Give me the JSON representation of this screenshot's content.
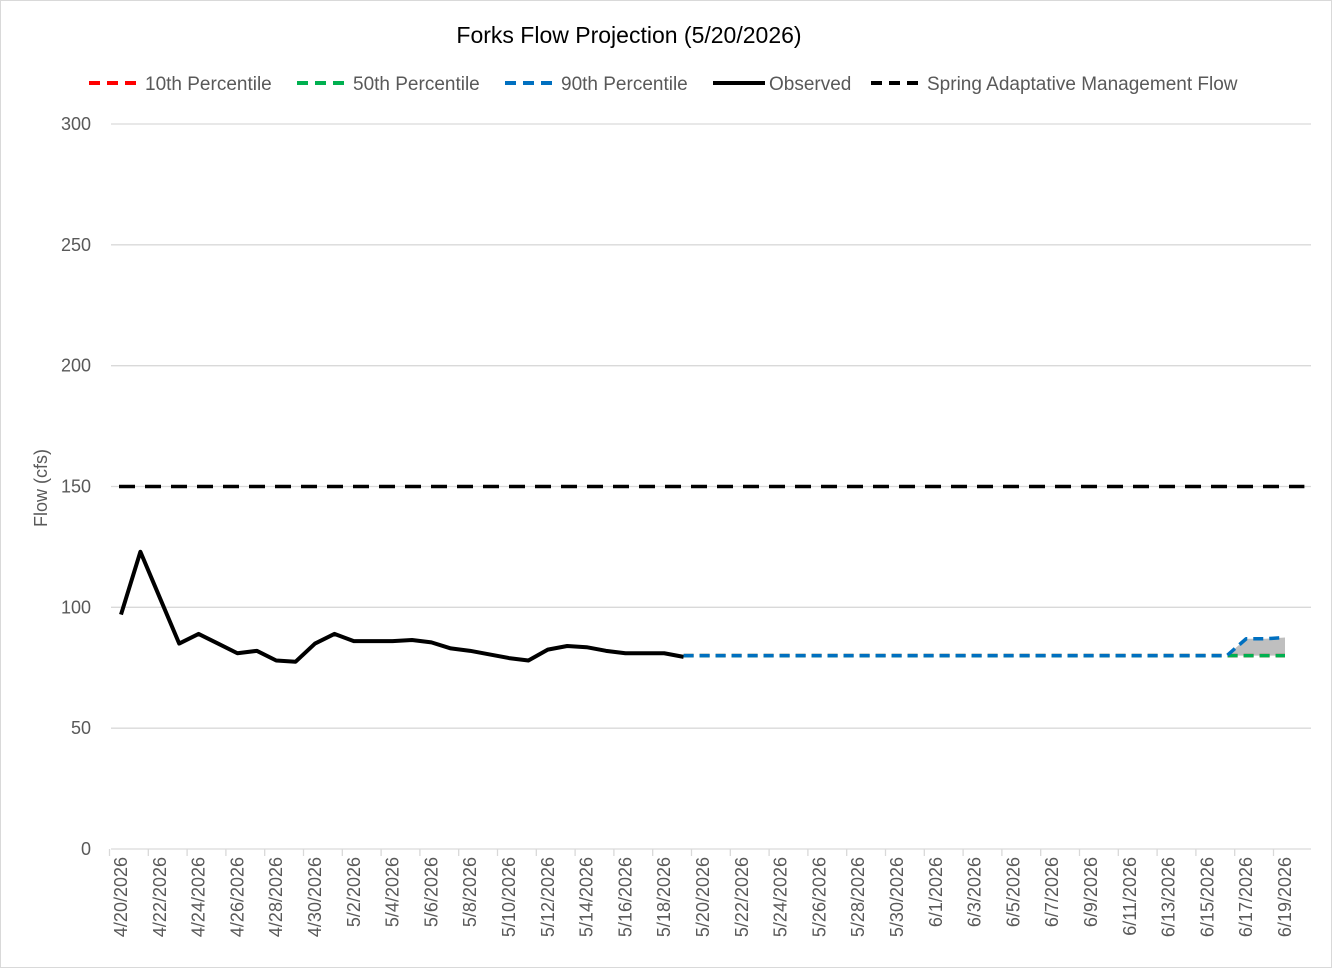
{
  "chart_data": {
    "type": "line",
    "title": "Forks Flow Projection (5/20/2026)",
    "xlabel": "",
    "ylabel": "Flow (cfs)",
    "ylim": [
      0,
      300
    ],
    "yticks": [
      0,
      50,
      100,
      150,
      200,
      250,
      300
    ],
    "grid": "horizontal",
    "legend_position": "top",
    "x_start_date": "4/20/2026",
    "x_tick_labels": [
      "4/20/2026",
      "4/22/2026",
      "4/24/2026",
      "4/26/2026",
      "4/28/2026",
      "4/30/2026",
      "5/2/2026",
      "5/4/2026",
      "5/6/2026",
      "5/8/2026",
      "5/10/2026",
      "5/12/2026",
      "5/14/2026",
      "5/16/2026",
      "5/18/2026",
      "5/20/2026",
      "5/22/2026",
      "5/24/2026",
      "5/26/2026",
      "5/28/2026",
      "5/30/2026",
      "6/1/2026",
      "6/3/2026",
      "6/5/2026",
      "6/7/2026",
      "6/9/2026",
      "6/11/2026",
      "6/13/2026",
      "6/15/2026",
      "6/17/2026",
      "6/19/2026"
    ],
    "shading": {
      "between": [
        "10th Percentile",
        "90th Percentile"
      ],
      "color": "#bfbfbf"
    },
    "series": [
      {
        "name": "10th Percentile",
        "color": "#ff0000",
        "style": "dashed",
        "x": [
          "5/19/2026",
          "5/20/2026",
          "5/21/2026",
          "5/22/2026",
          "5/23/2026",
          "5/24/2026",
          "5/25/2026",
          "5/26/2026",
          "5/27/2026",
          "5/28/2026",
          "5/29/2026",
          "5/30/2026",
          "5/31/2026",
          "6/1/2026",
          "6/2/2026",
          "6/3/2026",
          "6/4/2026",
          "6/5/2026",
          "6/6/2026",
          "6/7/2026",
          "6/8/2026",
          "6/9/2026",
          "6/10/2026",
          "6/11/2026",
          "6/12/2026",
          "6/13/2026",
          "6/14/2026",
          "6/15/2026",
          "6/16/2026",
          "6/17/2026",
          "6/18/2026",
          "6/19/2026"
        ],
        "y": [
          80,
          80,
          80,
          80,
          80,
          80,
          80,
          80,
          80,
          80,
          80,
          80,
          80,
          80,
          80,
          80,
          80,
          80,
          80,
          80,
          80,
          80,
          80,
          80,
          80,
          80,
          80,
          80,
          80,
          80,
          80,
          80
        ]
      },
      {
        "name": "50th Percentile",
        "color": "#00b050",
        "style": "dashed",
        "x": [
          "5/19/2026",
          "5/20/2026",
          "5/21/2026",
          "5/22/2026",
          "5/23/2026",
          "5/24/2026",
          "5/25/2026",
          "5/26/2026",
          "5/27/2026",
          "5/28/2026",
          "5/29/2026",
          "5/30/2026",
          "5/31/2026",
          "6/1/2026",
          "6/2/2026",
          "6/3/2026",
          "6/4/2026",
          "6/5/2026",
          "6/6/2026",
          "6/7/2026",
          "6/8/2026",
          "6/9/2026",
          "6/10/2026",
          "6/11/2026",
          "6/12/2026",
          "6/13/2026",
          "6/14/2026",
          "6/15/2026",
          "6/16/2026",
          "6/17/2026",
          "6/18/2026",
          "6/19/2026"
        ],
        "y": [
          80,
          80,
          80,
          80,
          80,
          80,
          80,
          80,
          80,
          80,
          80,
          80,
          80,
          80,
          80,
          80,
          80,
          80,
          80,
          80,
          80,
          80,
          80,
          80,
          80,
          80,
          80,
          80,
          80,
          80,
          80,
          80
        ]
      },
      {
        "name": "90th Percentile",
        "color": "#0070c0",
        "style": "dashed",
        "x": [
          "5/19/2026",
          "5/20/2026",
          "5/21/2026",
          "5/22/2026",
          "5/23/2026",
          "5/24/2026",
          "5/25/2026",
          "5/26/2026",
          "5/27/2026",
          "5/28/2026",
          "5/29/2026",
          "5/30/2026",
          "5/31/2026",
          "6/1/2026",
          "6/2/2026",
          "6/3/2026",
          "6/4/2026",
          "6/5/2026",
          "6/6/2026",
          "6/7/2026",
          "6/8/2026",
          "6/9/2026",
          "6/10/2026",
          "6/11/2026",
          "6/12/2026",
          "6/13/2026",
          "6/14/2026",
          "6/15/2026",
          "6/16/2026",
          "6/17/2026",
          "6/18/2026",
          "6/19/2026"
        ],
        "y": [
          80,
          80,
          80,
          80,
          80,
          80,
          80,
          80,
          80,
          80,
          80,
          80,
          80,
          80,
          80,
          80,
          80,
          80,
          80,
          80,
          80,
          80,
          80,
          80,
          80,
          80,
          80,
          80,
          80,
          87,
          87,
          87.5
        ]
      },
      {
        "name": "Observed",
        "color": "#000000",
        "style": "solid",
        "x": [
          "4/20/2026",
          "4/21/2026",
          "4/22/2026",
          "4/23/2026",
          "4/24/2026",
          "4/25/2026",
          "4/26/2026",
          "4/27/2026",
          "4/28/2026",
          "4/29/2026",
          "4/30/2026",
          "5/1/2026",
          "5/2/2026",
          "5/3/2026",
          "5/4/2026",
          "5/5/2026",
          "5/6/2026",
          "5/7/2026",
          "5/8/2026",
          "5/9/2026",
          "5/10/2026",
          "5/11/2026",
          "5/12/2026",
          "5/13/2026",
          "5/14/2026",
          "5/15/2026",
          "5/16/2026",
          "5/17/2026",
          "5/18/2026",
          "5/19/2026"
        ],
        "y": [
          97,
          123,
          104,
          85,
          89,
          85,
          81,
          82,
          78,
          77.5,
          85,
          89,
          86,
          86,
          86,
          86.5,
          85.5,
          83,
          82,
          80.5,
          79,
          78,
          82.5,
          84,
          83.5,
          82,
          81,
          81,
          81,
          79.5
        ]
      },
      {
        "name": "Spring Adaptative Management Flow",
        "color": "#000000",
        "style": "dashed",
        "x": [
          "4/19/2026",
          "6/20/2026"
        ],
        "y": [
          150,
          150
        ]
      }
    ]
  }
}
